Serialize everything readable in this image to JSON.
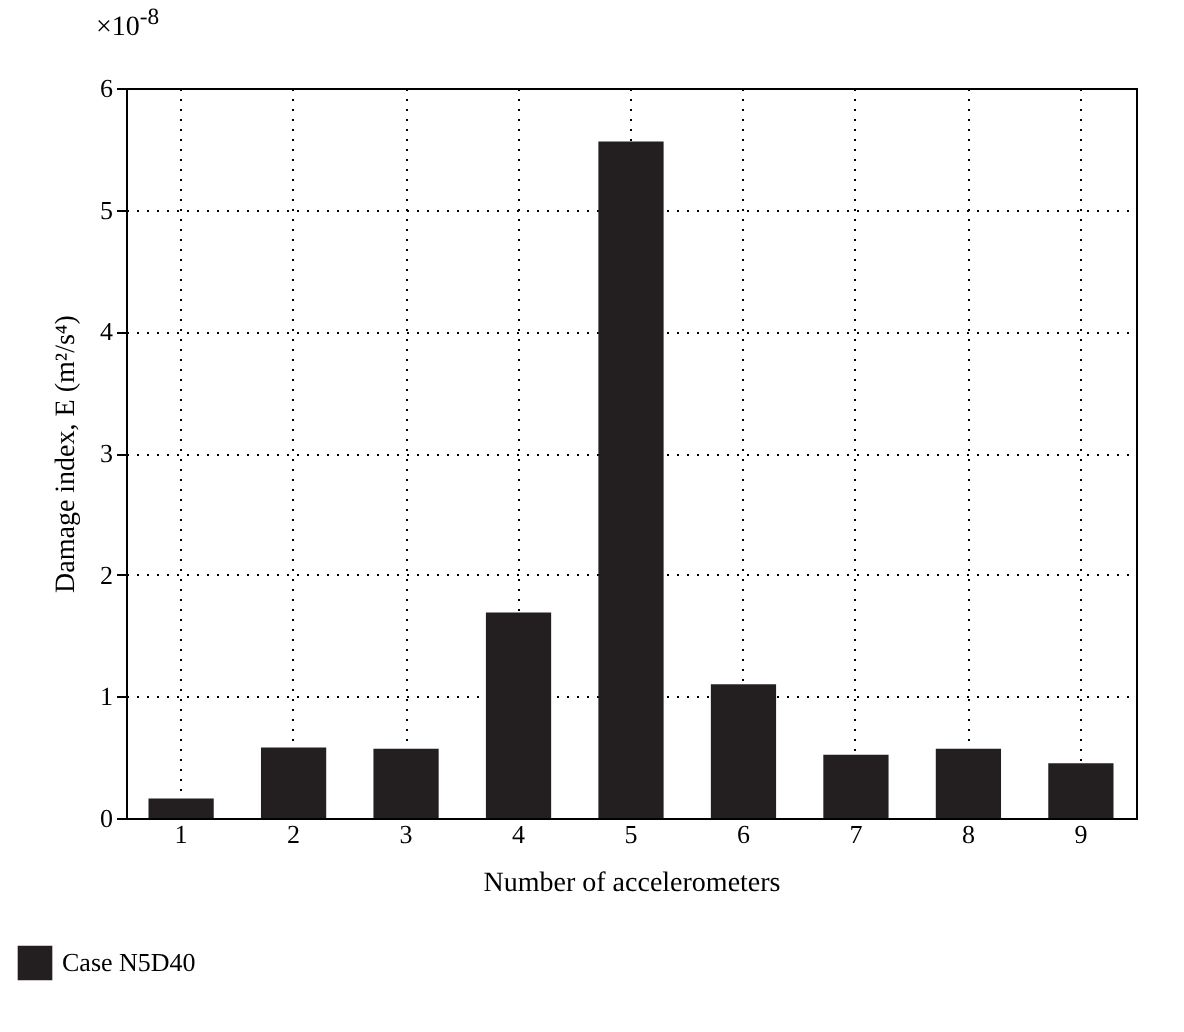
{
  "chart_data": {
    "type": "bar",
    "xlabel": "Number of accelerometers",
    "ylabel": "Damage index, E (m²/s⁴)",
    "annotations": [
      "×10$^{-8}$"
    ],
    "categories": [
      "1",
      "2",
      "3",
      "4",
      "5",
      "6",
      "7",
      "8",
      "9"
    ],
    "series": [
      {
        "name": "Case N5D40",
        "color": "#231f20",
        "values": [
          0.16,
          0.58,
          0.57,
          1.69,
          5.56,
          1.1,
          0.52,
          0.57,
          0.45
        ]
      }
    ],
    "ylim": [
      0,
      6
    ],
    "yticks": [
      0,
      1,
      2,
      3,
      4,
      5,
      6
    ],
    "grid": true,
    "legend": "bottom left"
  }
}
